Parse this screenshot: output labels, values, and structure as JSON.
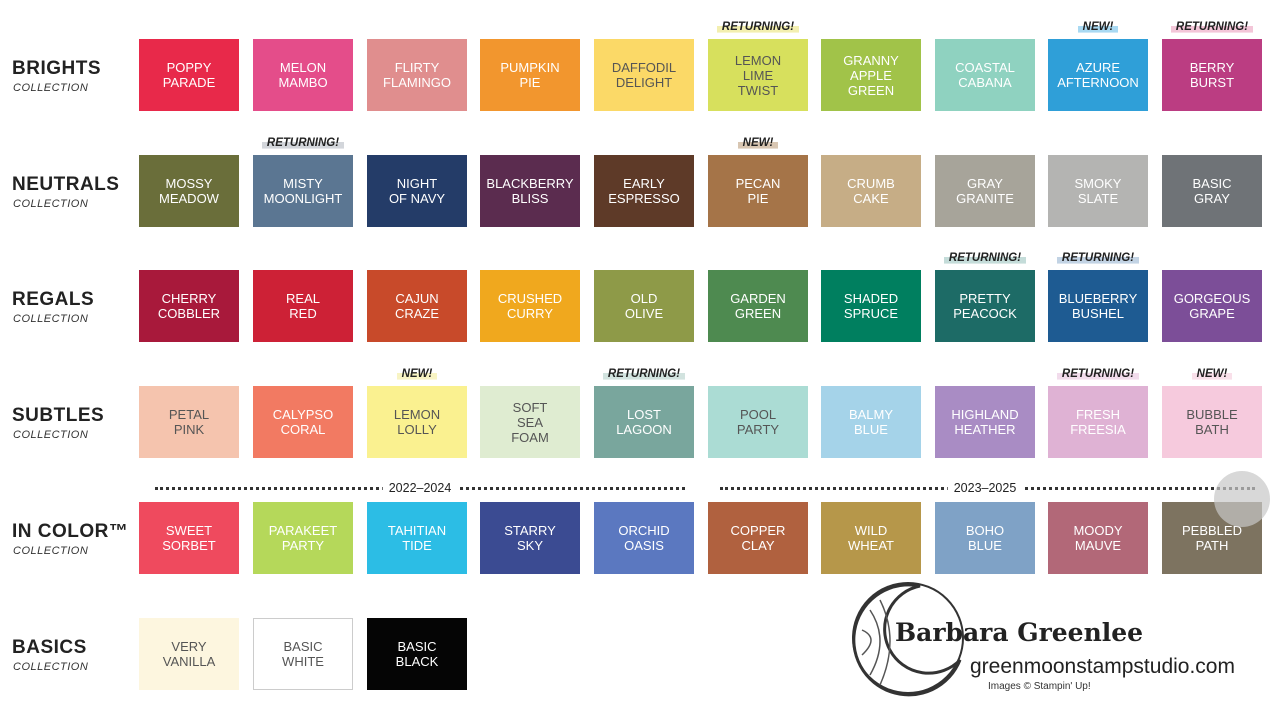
{
  "rows": [
    {
      "name": "BRIGHTS",
      "subtitle": "COLLECTION",
      "swatches": [
        {
          "lines": [
            "POPPY",
            "PARADE"
          ],
          "color": "#e8294a"
        },
        {
          "lines": [
            "MELON",
            "MAMBO"
          ],
          "color": "#e44d8a"
        },
        {
          "lines": [
            "FLIRTY",
            "FLAMINGO"
          ],
          "color": "#e08e8e"
        },
        {
          "lines": [
            "PUMPKIN",
            "PIE"
          ],
          "color": "#f2962e"
        },
        {
          "lines": [
            "DAFFODIL",
            "DELIGHT"
          ],
          "color": "#fbd967"
        },
        {
          "lines": [
            "LEMON",
            "LIME",
            "TWIST"
          ],
          "color": "#d7e05d",
          "tag": "RETURNING!",
          "tag_color": "#f3efb0"
        },
        {
          "lines": [
            "GRANNY",
            "APPLE",
            "GREEN"
          ],
          "color": "#a1c349"
        },
        {
          "lines": [
            "COASTAL",
            "CABANA"
          ],
          "color": "#8fd2c0"
        },
        {
          "lines": [
            "AZURE",
            "AFTERNOON"
          ],
          "color": "#2f9fd8",
          "tag": "NEW!",
          "tag_color": "#a9d9f2"
        },
        {
          "lines": [
            "BERRY",
            "BURST"
          ],
          "color": "#bb3d82",
          "tag": "RETURNING!",
          "tag_color": "#f3c6d8"
        }
      ]
    },
    {
      "name": "NEUTRALS",
      "subtitle": "COLLECTION",
      "swatches": [
        {
          "lines": [
            "MOSSY",
            "MEADOW"
          ],
          "color": "#6a6e3a"
        },
        {
          "lines": [
            "MISTY",
            "MOONLIGHT"
          ],
          "color": "#5b7692",
          "tag": "RETURNING!",
          "tag_color": "#d3d6db"
        },
        {
          "lines": [
            "NIGHT",
            "OF NAVY"
          ],
          "color": "#243c68"
        },
        {
          "lines": [
            "BLACKBERRY",
            "BLISS"
          ],
          "color": "#5b2c4f"
        },
        {
          "lines": [
            "EARLY",
            "ESPRESSO"
          ],
          "color": "#5e3a28"
        },
        {
          "lines": [
            "PECAN",
            "PIE"
          ],
          "color": "#a57448",
          "tag": "NEW!",
          "tag_color": "#d8c6b2"
        },
        {
          "lines": [
            "CRUMB",
            "CAKE"
          ],
          "color": "#c6ad86"
        },
        {
          "lines": [
            "GRAY",
            "GRANITE"
          ],
          "color": "#a7a49a"
        },
        {
          "lines": [
            "SMOKY",
            "SLATE"
          ],
          "color": "#b4b4b2"
        },
        {
          "lines": [
            "BASIC",
            "GRAY"
          ],
          "color": "#6f7377"
        }
      ]
    },
    {
      "name": "REGALS",
      "subtitle": "COLLECTION",
      "swatches": [
        {
          "lines": [
            "CHERRY",
            "COBBLER"
          ],
          "color": "#a8193b"
        },
        {
          "lines": [
            "REAL",
            "RED"
          ],
          "color": "#cd2136"
        },
        {
          "lines": [
            "CAJUN",
            "CRAZE"
          ],
          "color": "#c84a2a"
        },
        {
          "lines": [
            "CRUSHED",
            "CURRY"
          ],
          "color": "#f0a81e"
        },
        {
          "lines": [
            "OLD",
            "OLIVE"
          ],
          "color": "#8e9a48"
        },
        {
          "lines": [
            "GARDEN",
            "GREEN"
          ],
          "color": "#4e8a50"
        },
        {
          "lines": [
            "SHADED",
            "SPRUCE"
          ],
          "color": "#007f5f"
        },
        {
          "lines": [
            "PRETTY",
            "PEACOCK"
          ],
          "color": "#1d6b66",
          "tag": "RETURNING!",
          "tag_color": "#c4dcd9"
        },
        {
          "lines": [
            "BLUEBERRY",
            "BUSHEL"
          ],
          "color": "#1e5b92",
          "tag": "RETURNING!",
          "tag_color": "#c2d3e4"
        },
        {
          "lines": [
            "GORGEOUS",
            "GRAPE"
          ],
          "color": "#7c4e98"
        }
      ]
    },
    {
      "name": "SUBTLES",
      "subtitle": "COLLECTION",
      "swatches": [
        {
          "lines": [
            "PETAL",
            "PINK"
          ],
          "color": "#f5c4ae"
        },
        {
          "lines": [
            "CALYPSO",
            "CORAL"
          ],
          "color": "#f27a62"
        },
        {
          "lines": [
            "LEMON",
            "LOLLY"
          ],
          "color": "#faf190",
          "tag": "NEW!",
          "tag_color": "#f8f4c4"
        },
        {
          "lines": [
            "SOFT",
            "SEA",
            "FOAM"
          ],
          "color": "#dfecd1"
        },
        {
          "lines": [
            "LOST",
            "LAGOON"
          ],
          "color": "#79a69d",
          "tag": "RETURNING!",
          "tag_color": "#d2e3df"
        },
        {
          "lines": [
            "POOL",
            "PARTY"
          ],
          "color": "#abdcd4"
        },
        {
          "lines": [
            "BALMY",
            "BLUE"
          ],
          "color": "#a5d3e9"
        },
        {
          "lines": [
            "HIGHLAND",
            "HEATHER"
          ],
          "color": "#a98cc4"
        },
        {
          "lines": [
            "FRESH",
            "FREESIA"
          ],
          "color": "#dfb2d4",
          "tag": "RETURNING!",
          "tag_color": "#f2dcec"
        },
        {
          "lines": [
            "BUBBLE",
            "BATH"
          ],
          "color": "#f6cadd",
          "tag": "NEW!",
          "tag_color": "#f9e0ea"
        }
      ]
    },
    {
      "name": "IN COLOR™",
      "subtitle": "COLLECTION",
      "swatches": [
        {
          "lines": [
            "SWEET",
            "SORBET"
          ],
          "color": "#ef4a5e"
        },
        {
          "lines": [
            "PARAKEET",
            "PARTY"
          ],
          "color": "#b5d85a"
        },
        {
          "lines": [
            "TAHITIAN",
            "TIDE"
          ],
          "color": "#2cbde5"
        },
        {
          "lines": [
            "STARRY",
            "SKY"
          ],
          "color": "#3b4b92"
        },
        {
          "lines": [
            "ORCHID",
            "OASIS"
          ],
          "color": "#5b78c0"
        },
        {
          "lines": [
            "COPPER",
            "CLAY"
          ],
          "color": "#b0613f"
        },
        {
          "lines": [
            "WILD",
            "WHEAT"
          ],
          "color": "#b6974a"
        },
        {
          "lines": [
            "BOHO",
            "BLUE"
          ],
          "color": "#7fa2c6"
        },
        {
          "lines": [
            "MOODY",
            "MAUVE"
          ],
          "color": "#b26878"
        },
        {
          "lines": [
            "PEBBLED",
            "PATH"
          ],
          "color": "#7d7360"
        }
      ]
    },
    {
      "name": "BASICS",
      "subtitle": "COLLECTION",
      "swatches": [
        {
          "lines": [
            "VERY",
            "VANILLA"
          ],
          "color": "#fdf6df"
        },
        {
          "lines": [
            "BASIC",
            "WHITE"
          ],
          "color": "#ffffff"
        },
        {
          "lines": [
            "BASIC",
            "BLACK"
          ],
          "color": "#050505"
        }
      ]
    }
  ],
  "dividers": [
    {
      "label": "2022–2024"
    },
    {
      "label": "2023–2025"
    }
  ],
  "credit": {
    "name": "Barbara Greenlee",
    "site": "greenmoonstampstudio.com",
    "note": "Images © Stampin' Up!"
  }
}
